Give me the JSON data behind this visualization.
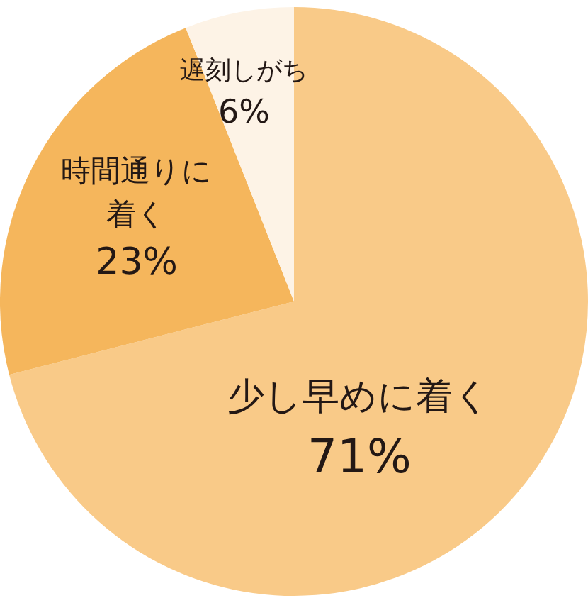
{
  "chart_data": {
    "type": "pie",
    "categories": [
      "少し早めに着く",
      "時間通りに着く",
      "遅刻しがち"
    ],
    "values": [
      71,
      23,
      6
    ],
    "value_labels": [
      "71%",
      "23%",
      "6%"
    ],
    "colors": [
      "#f9ca88",
      "#f5b65c",
      "#fdf3e6"
    ]
  }
}
